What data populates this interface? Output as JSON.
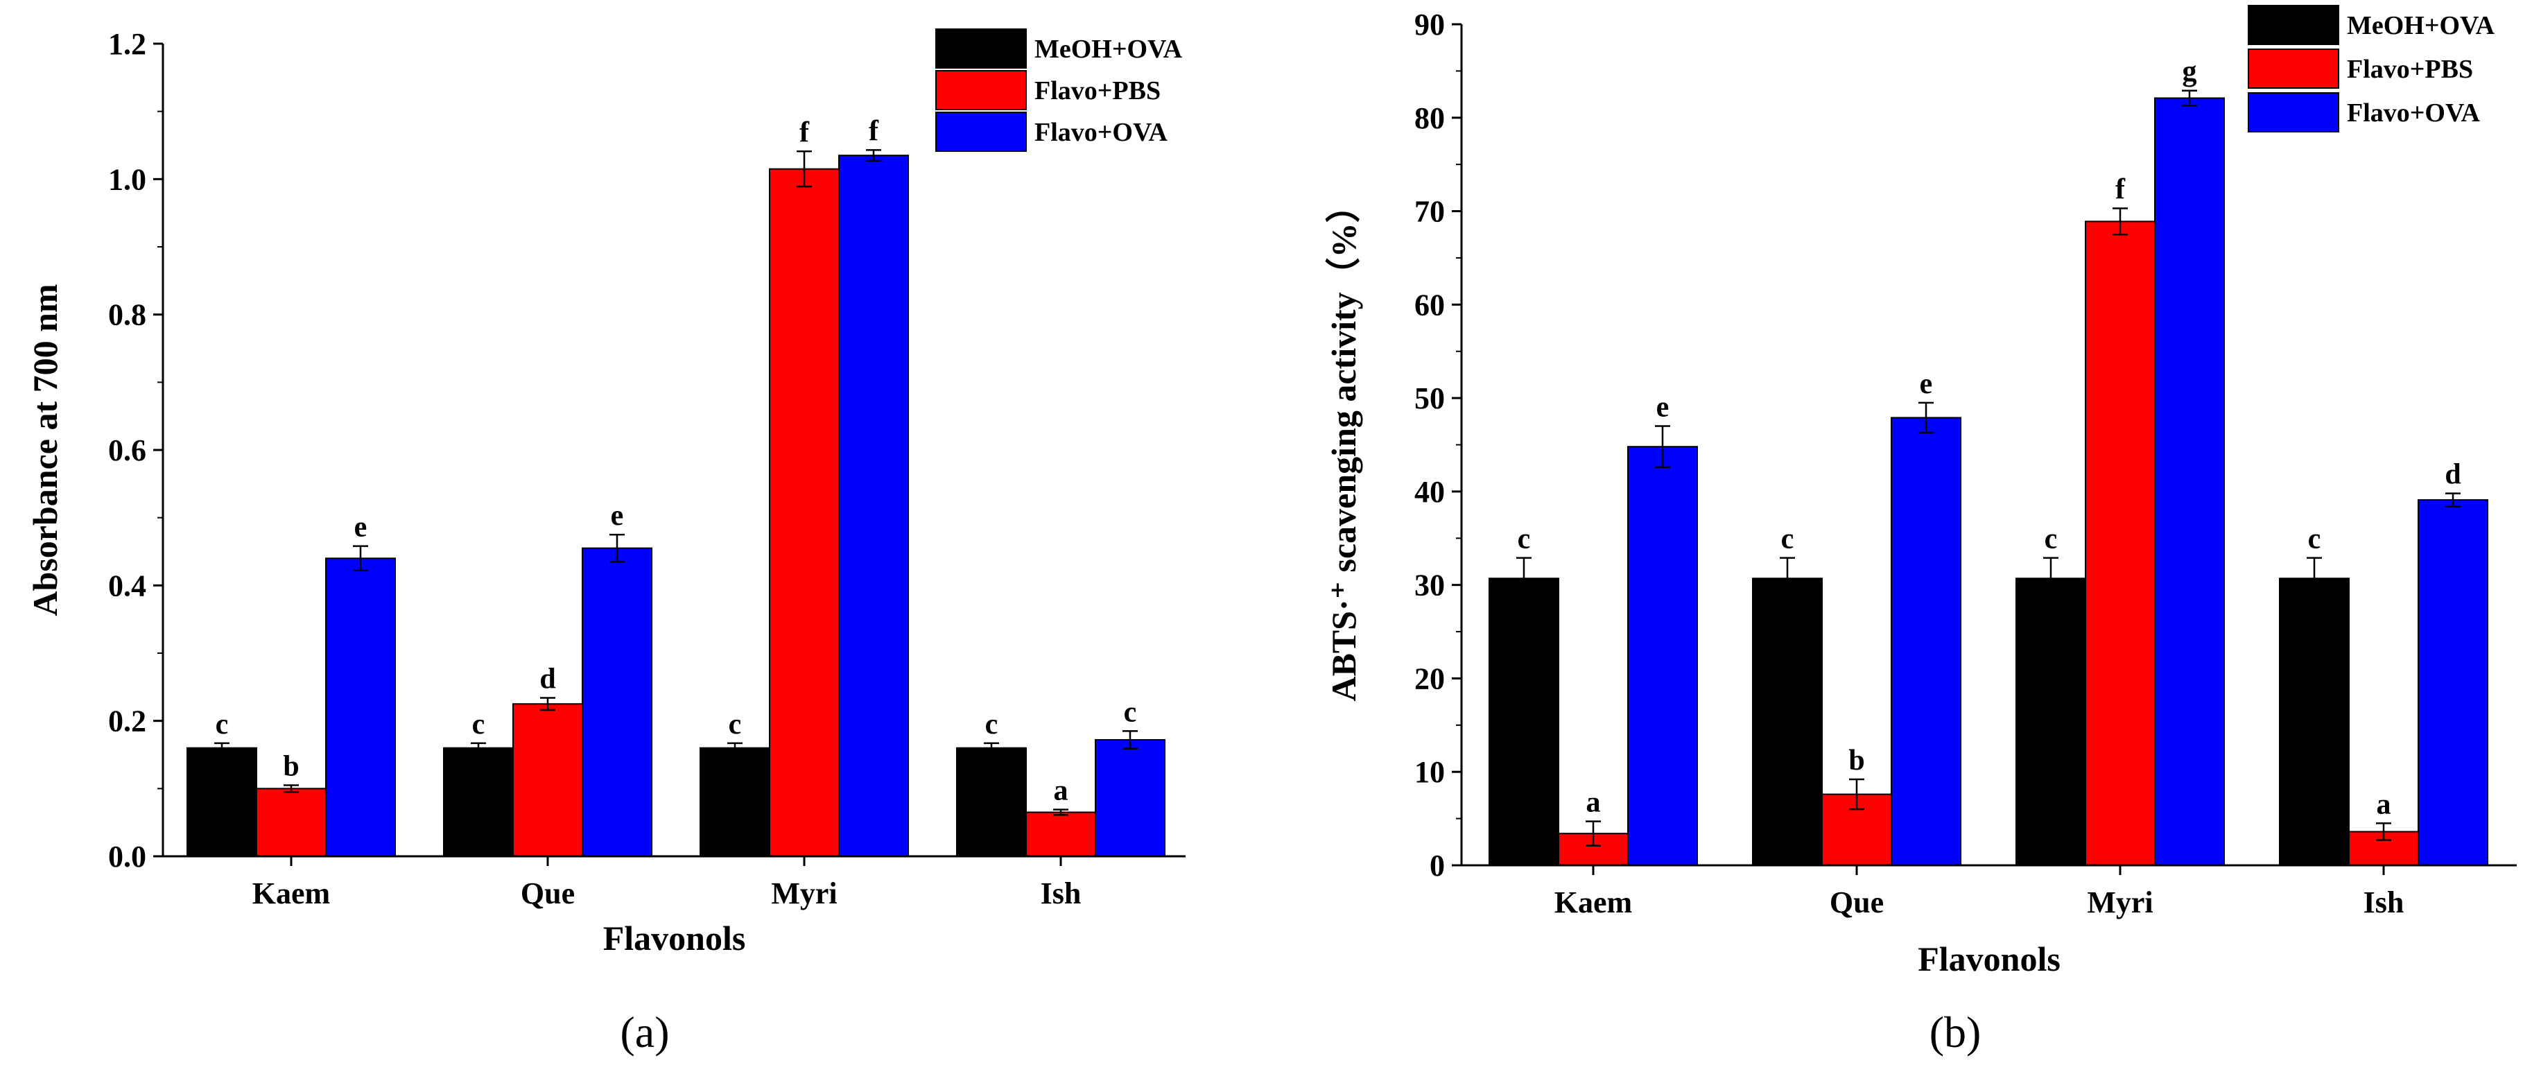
{
  "chart_data": [
    {
      "type": "bar",
      "panel_label": "(a)",
      "categories": [
        "Kaem",
        "Que",
        "Myri",
        "Ish"
      ],
      "series": [
        {
          "name": "MeOH+OVA",
          "color": "#000000",
          "values": [
            0.16,
            0.16,
            0.16,
            0.16
          ],
          "errors": [
            0.007,
            0.007,
            0.007,
            0.007
          ],
          "letters": [
            "c",
            "c",
            "c",
            "c"
          ]
        },
        {
          "name": "Flavo+PBS",
          "color": "#ff0000",
          "values": [
            0.1,
            0.225,
            1.015,
            0.065
          ],
          "errors": [
            0.005,
            0.009,
            0.026,
            0.004
          ],
          "letters": [
            "b",
            "d",
            "f",
            "a"
          ]
        },
        {
          "name": "Flavo+OVA",
          "color": "#0000ff",
          "values": [
            0.44,
            0.455,
            1.035,
            0.172
          ],
          "errors": [
            0.018,
            0.02,
            0.008,
            0.013
          ],
          "letters": [
            "e",
            "e",
            "f",
            "c"
          ]
        }
      ],
      "xlabel": "Flavonols",
      "ylabel": "Absorbance at 700 nm",
      "ylim": [
        0.0,
        1.2
      ],
      "yticks": [
        "0.0",
        "0.2",
        "0.4",
        "0.6",
        "0.8",
        "1.0",
        "1.2"
      ],
      "legend": "top-right"
    },
    {
      "type": "bar",
      "panel_label": "(b)",
      "categories": [
        "Kaem",
        "Que",
        "Myri",
        "Ish"
      ],
      "series": [
        {
          "name": "MeOH+OVA",
          "color": "#000000",
          "values": [
            30.7,
            30.7,
            30.7,
            30.7
          ],
          "errors": [
            2.2,
            2.2,
            2.2,
            2.2
          ],
          "letters": [
            "c",
            "c",
            "c",
            "c"
          ]
        },
        {
          "name": "Flavo+PBS",
          "color": "#ff0000",
          "values": [
            3.4,
            7.6,
            68.9,
            3.6
          ],
          "errors": [
            1.3,
            1.6,
            1.4,
            0.9
          ],
          "letters": [
            "a",
            "b",
            "f",
            "a"
          ]
        },
        {
          "name": "Flavo+OVA",
          "color": "#0000ff",
          "values": [
            44.8,
            47.9,
            82.1,
            39.1
          ],
          "errors": [
            2.2,
            1.6,
            0.8,
            0.7
          ],
          "letters": [
            "e",
            "e",
            "g",
            "d"
          ]
        }
      ],
      "xlabel": "Flavonols",
      "ylabel": "ABTS·⁺ scavenging activity（%）",
      "ylim": [
        0,
        90
      ],
      "yticks": [
        "0",
        "10",
        "20",
        "30",
        "40",
        "50",
        "60",
        "70",
        "80",
        "90"
      ],
      "legend": "top-right"
    }
  ]
}
